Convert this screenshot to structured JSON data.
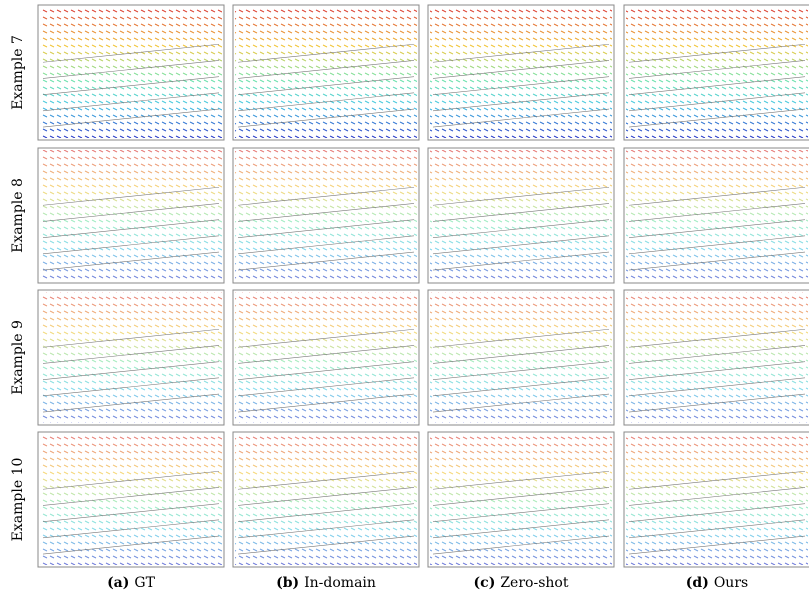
{
  "figure": {
    "rows": [
      "Example 7",
      "Example 8",
      "Example 9",
      "Example 10"
    ],
    "columns": [
      {
        "tag": "(a)",
        "label": "GT"
      },
      {
        "tag": "(b)",
        "label": "In-domain"
      },
      {
        "tag": "(c)",
        "label": "Zero-shot"
      },
      {
        "tag": "(d)",
        "label": "Ours"
      }
    ]
  }
}
